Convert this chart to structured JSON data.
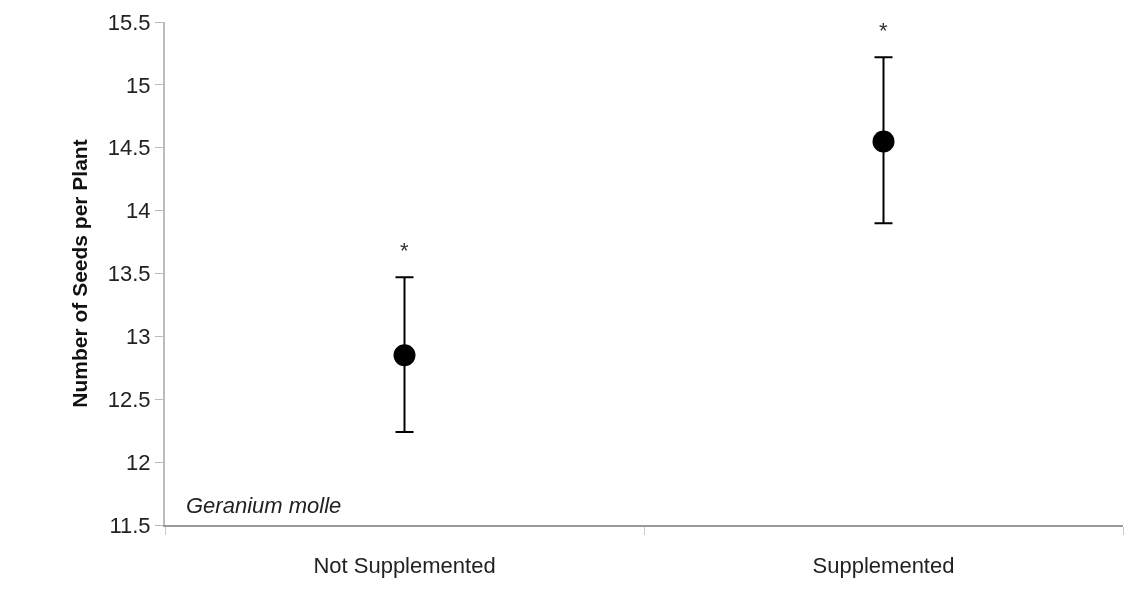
{
  "chart_data": {
    "type": "scatter",
    "ylabel": "Number of Seeds per Plant",
    "categories": [
      "Not Supplemented",
      "Supplemented"
    ],
    "values": [
      12.85,
      14.55
    ],
    "errors": [
      [
        12.24,
        13.47
      ],
      [
        13.9,
        15.22
      ]
    ],
    "color": "#000000",
    "marker": "circle",
    "ylim": [
      11.5,
      15.5
    ],
    "yticks": [
      11.5,
      12,
      12.5,
      13,
      13.5,
      14,
      14.5,
      15,
      15.5
    ],
    "legend": false,
    "annotations": [
      "*",
      "*",
      "Geranium molle"
    ]
  }
}
